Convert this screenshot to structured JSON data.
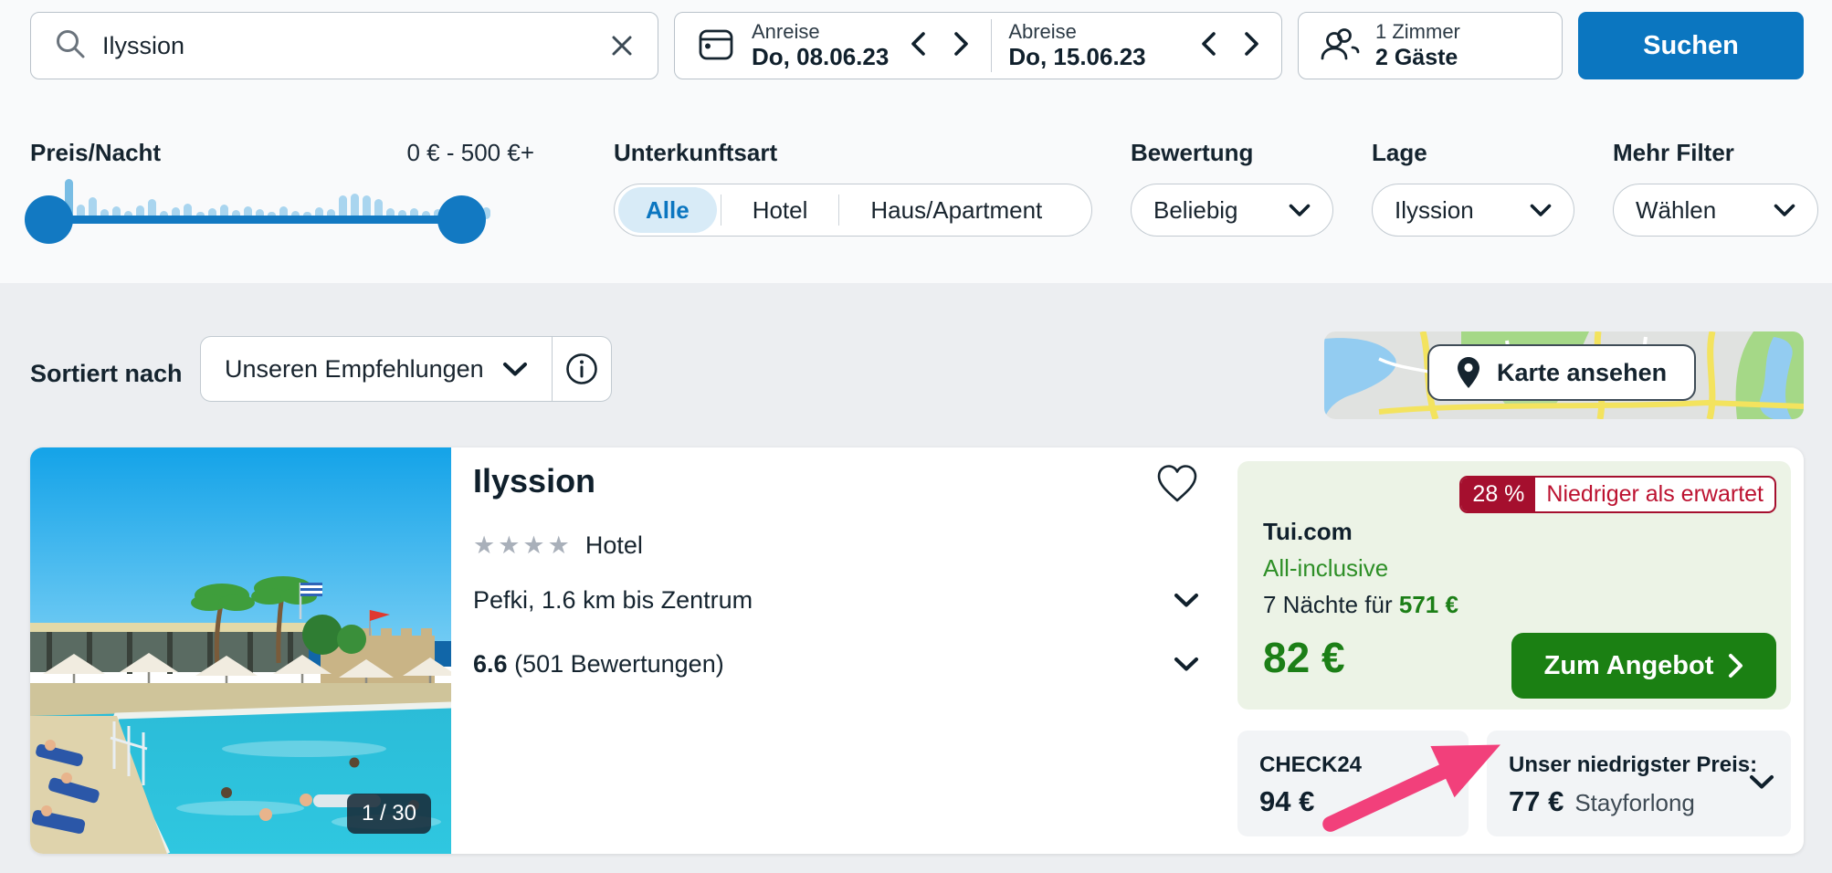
{
  "search": {
    "value": "Ilyssion"
  },
  "dates": {
    "checkin_label": "Anreise",
    "checkin_value": "Do, 08.06.23",
    "checkout_label": "Abreise",
    "checkout_value": "Do, 15.06.23"
  },
  "guests": {
    "rooms": "1 Zimmer",
    "count": "2 Gäste"
  },
  "search_button": "Suchen",
  "filters": {
    "price": {
      "label": "Preis/Nacht",
      "range": "0 € - 500 €+",
      "histogram": [
        44,
        16,
        24,
        11,
        14,
        9,
        15,
        22,
        9,
        13,
        17,
        8,
        12,
        16,
        10,
        14,
        11,
        8,
        14,
        9,
        8,
        13,
        11,
        26,
        28,
        26,
        22,
        12,
        10,
        12,
        9,
        11,
        9,
        8,
        9,
        13
      ]
    },
    "accommodation": {
      "label": "Unterkunftsart",
      "options": [
        "Alle",
        "Hotel",
        "Haus/Apartment"
      ],
      "selected": "Alle"
    },
    "rating": {
      "label": "Bewertung",
      "value": "Beliebig"
    },
    "location": {
      "label": "Lage",
      "value": "Ilyssion"
    },
    "more": {
      "label": "Mehr Filter",
      "value": "Wählen"
    }
  },
  "sort": {
    "label": "Sortiert nach",
    "value": "Unseren Empfehlungen"
  },
  "map": {
    "button_label": "Karte ansehen"
  },
  "hotel": {
    "name": "Ilyssion",
    "stars": 4,
    "type": "Hotel",
    "location": "Pefki, 1.6 km bis Zentrum",
    "rating": "6.6",
    "reviews": "(501 Bewertungen)",
    "image_counter": "1 / 30",
    "offer": {
      "badge_percent": "28 %",
      "badge_text": "Niedriger als erwartet",
      "provider": "Tui.com",
      "board": "All-inclusive",
      "nights_prefix": "7 Nächte für",
      "nights_total": "571 €",
      "price_per_night": "82 €",
      "cta": "Zum Angebot"
    },
    "compare": {
      "check24_label": "CHECK24",
      "check24_price": "94 €",
      "lowest_label": "Unser niedrigster Preis:",
      "lowest_price": "77 €",
      "lowest_provider": "Stayforlong"
    }
  },
  "colors": {
    "accent_blue": "#0b76c0",
    "slider_blue": "#1279c2",
    "histogram_bar": "#a9d5ef",
    "histogram_bar_dark": "#79bde4",
    "green_text": "#1c7f17",
    "green_button": "#1b8013",
    "board_green": "#2e8f27",
    "badge_red": "#a50f2e",
    "badge_red_text": "#bc1230",
    "annotation_pink": "#f2407b",
    "star_gray": "#a9b0ba",
    "offer_panel_bg": "#ecf3e6",
    "compare_box_bg": "#f2f4f6"
  }
}
